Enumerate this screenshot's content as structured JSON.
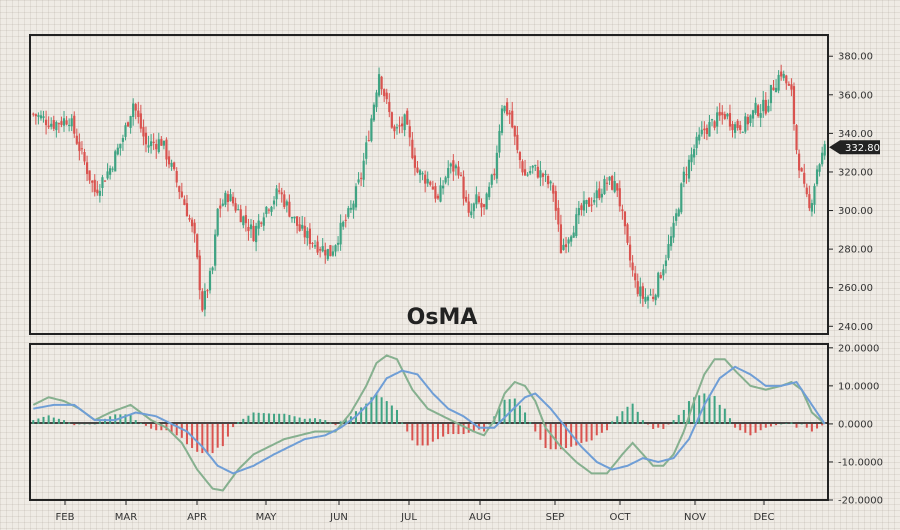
{
  "chart_data": [
    {
      "type": "candlestick",
      "title": "OsMA",
      "x_tick_labels": [
        "FEB",
        "MAR",
        "APR",
        "MAY",
        "JUN",
        "JUL",
        "AUG",
        "SEP",
        "OCT",
        "NOV",
        "DEC"
      ],
      "y_tick_labels": [
        "240.00",
        "260.00",
        "280.00",
        "300.00",
        "320.00",
        "340.00",
        "360.00",
        "380.00"
      ],
      "ylim": [
        236,
        391
      ],
      "last_price_label": "332.80",
      "last_price": 332.8,
      "colors": {
        "up": "#3fa383",
        "down": "#d9534f",
        "price_tag": "#222222"
      },
      "close_anchors": [
        [
          0,
          350
        ],
        [
          8,
          345
        ],
        [
          14,
          348
        ],
        [
          20,
          325
        ],
        [
          24,
          310
        ],
        [
          30,
          322
        ],
        [
          35,
          338
        ],
        [
          39,
          356
        ],
        [
          44,
          334
        ],
        [
          50,
          336
        ],
        [
          54,
          322
        ],
        [
          60,
          300
        ],
        [
          63,
          285
        ],
        [
          66,
          250
        ],
        [
          70,
          270
        ],
        [
          72,
          300
        ],
        [
          76,
          308
        ],
        [
          82,
          296
        ],
        [
          86,
          288
        ],
        [
          90,
          300
        ],
        [
          96,
          310
        ],
        [
          100,
          300
        ],
        [
          104,
          290
        ],
        [
          110,
          283
        ],
        [
          116,
          278
        ],
        [
          120,
          290
        ],
        [
          124,
          300
        ],
        [
          128,
          318
        ],
        [
          131,
          340
        ],
        [
          135,
          372
        ],
        [
          138,
          355
        ],
        [
          141,
          340
        ],
        [
          145,
          346
        ],
        [
          150,
          320
        ],
        [
          155,
          315
        ],
        [
          158,
          305
        ],
        [
          162,
          322
        ],
        [
          166,
          322
        ],
        [
          170,
          296
        ],
        [
          173,
          305
        ],
        [
          176,
          300
        ],
        [
          180,
          320
        ],
        [
          183,
          355
        ],
        [
          186,
          350
        ],
        [
          189,
          330
        ],
        [
          192,
          318
        ],
        [
          195,
          322
        ],
        [
          199,
          318
        ],
        [
          203,
          310
        ],
        [
          206,
          280
        ],
        [
          210,
          290
        ],
        [
          214,
          300
        ],
        [
          220,
          308
        ],
        [
          224,
          315
        ],
        [
          228,
          312
        ],
        [
          232,
          280
        ],
        [
          235,
          262
        ],
        [
          238,
          255
        ],
        [
          242,
          256
        ],
        [
          246,
          272
        ],
        [
          250,
          290
        ],
        [
          254,
          318
        ],
        [
          258,
          332
        ],
        [
          262,
          342
        ],
        [
          266,
          346
        ],
        [
          270,
          350
        ],
        [
          274,
          344
        ],
        [
          278,
          345
        ],
        [
          282,
          352
        ],
        [
          286,
          354
        ],
        [
          289,
          365
        ],
        [
          292,
          372
        ],
        [
          296,
          360
        ],
        [
          298,
          332
        ],
        [
          301,
          310
        ],
        [
          303,
          300
        ],
        [
          306,
          322
        ],
        [
          309,
          332
        ]
      ]
    },
    {
      "type": "line+bar",
      "x_tick_labels": [
        "FEB",
        "MAR",
        "APR",
        "MAY",
        "JUN",
        "JUL",
        "AUG",
        "SEP",
        "OCT",
        "NOV",
        "DEC"
      ],
      "y_tick_labels": [
        "-20.0000",
        "-10.0000",
        "0.0000",
        "10.0000",
        "20.0000"
      ],
      "ylim": [
        -20,
        21
      ],
      "colors": {
        "macd": "#86b08f",
        "signal": "#6f9ed6",
        "histogram_positive": "#3fa383",
        "histogram_negative": "#d9534f"
      },
      "macd_anchors": [
        [
          0,
          5
        ],
        [
          6,
          7
        ],
        [
          12,
          6
        ],
        [
          18,
          4
        ],
        [
          24,
          1
        ],
        [
          30,
          3
        ],
        [
          38,
          5
        ],
        [
          46,
          1
        ],
        [
          52,
          -1
        ],
        [
          58,
          -5
        ],
        [
          64,
          -12
        ],
        [
          70,
          -17
        ],
        [
          74,
          -17.5
        ],
        [
          80,
          -12
        ],
        [
          86,
          -8
        ],
        [
          92,
          -6
        ],
        [
          98,
          -4
        ],
        [
          104,
          -3
        ],
        [
          110,
          -2
        ],
        [
          118,
          -2
        ],
        [
          124,
          3
        ],
        [
          130,
          10
        ],
        [
          134,
          16
        ],
        [
          138,
          18
        ],
        [
          142,
          17
        ],
        [
          148,
          9
        ],
        [
          154,
          4
        ],
        [
          160,
          2
        ],
        [
          166,
          0
        ],
        [
          172,
          -2
        ],
        [
          176,
          -3
        ],
        [
          180,
          1
        ],
        [
          184,
          8
        ],
        [
          188,
          11
        ],
        [
          192,
          10
        ],
        [
          196,
          6
        ],
        [
          200,
          -1
        ],
        [
          206,
          -6
        ],
        [
          212,
          -10
        ],
        [
          218,
          -13
        ],
        [
          224,
          -13
        ],
        [
          230,
          -8
        ],
        [
          234,
          -5
        ],
        [
          238,
          -8
        ],
        [
          242,
          -11
        ],
        [
          246,
          -11
        ],
        [
          250,
          -8
        ],
        [
          254,
          -2
        ],
        [
          258,
          6
        ],
        [
          262,
          13
        ],
        [
          266,
          17
        ],
        [
          270,
          17
        ],
        [
          274,
          14
        ],
        [
          280,
          10
        ],
        [
          286,
          9
        ],
        [
          292,
          10
        ],
        [
          296,
          11
        ],
        [
          300,
          9
        ],
        [
          304,
          3
        ],
        [
          309,
          0
        ]
      ],
      "signal_anchors": [
        [
          0,
          4
        ],
        [
          8,
          5
        ],
        [
          16,
          5
        ],
        [
          24,
          1
        ],
        [
          32,
          1
        ],
        [
          40,
          3
        ],
        [
          48,
          2
        ],
        [
          54,
          0
        ],
        [
          60,
          -2
        ],
        [
          66,
          -6
        ],
        [
          72,
          -11
        ],
        [
          78,
          -13
        ],
        [
          86,
          -11
        ],
        [
          94,
          -8
        ],
        [
          100,
          -6
        ],
        [
          106,
          -4
        ],
        [
          114,
          -3
        ],
        [
          120,
          -1
        ],
        [
          126,
          2
        ],
        [
          132,
          6
        ],
        [
          138,
          12
        ],
        [
          144,
          14
        ],
        [
          150,
          13
        ],
        [
          156,
          8
        ],
        [
          162,
          4
        ],
        [
          168,
          2
        ],
        [
          174,
          -1
        ],
        [
          180,
          -1
        ],
        [
          186,
          3
        ],
        [
          192,
          7
        ],
        [
          196,
          8
        ],
        [
          202,
          4
        ],
        [
          208,
          -1
        ],
        [
          214,
          -6
        ],
        [
          220,
          -10
        ],
        [
          226,
          -12
        ],
        [
          232,
          -11
        ],
        [
          238,
          -9
        ],
        [
          244,
          -10
        ],
        [
          250,
          -9
        ],
        [
          256,
          -4
        ],
        [
          262,
          5
        ],
        [
          268,
          12
        ],
        [
          274,
          15
        ],
        [
          280,
          13
        ],
        [
          286,
          10
        ],
        [
          292,
          10
        ],
        [
          298,
          11
        ],
        [
          302,
          7
        ],
        [
          306,
          3
        ],
        [
          309,
          0
        ]
      ]
    }
  ]
}
